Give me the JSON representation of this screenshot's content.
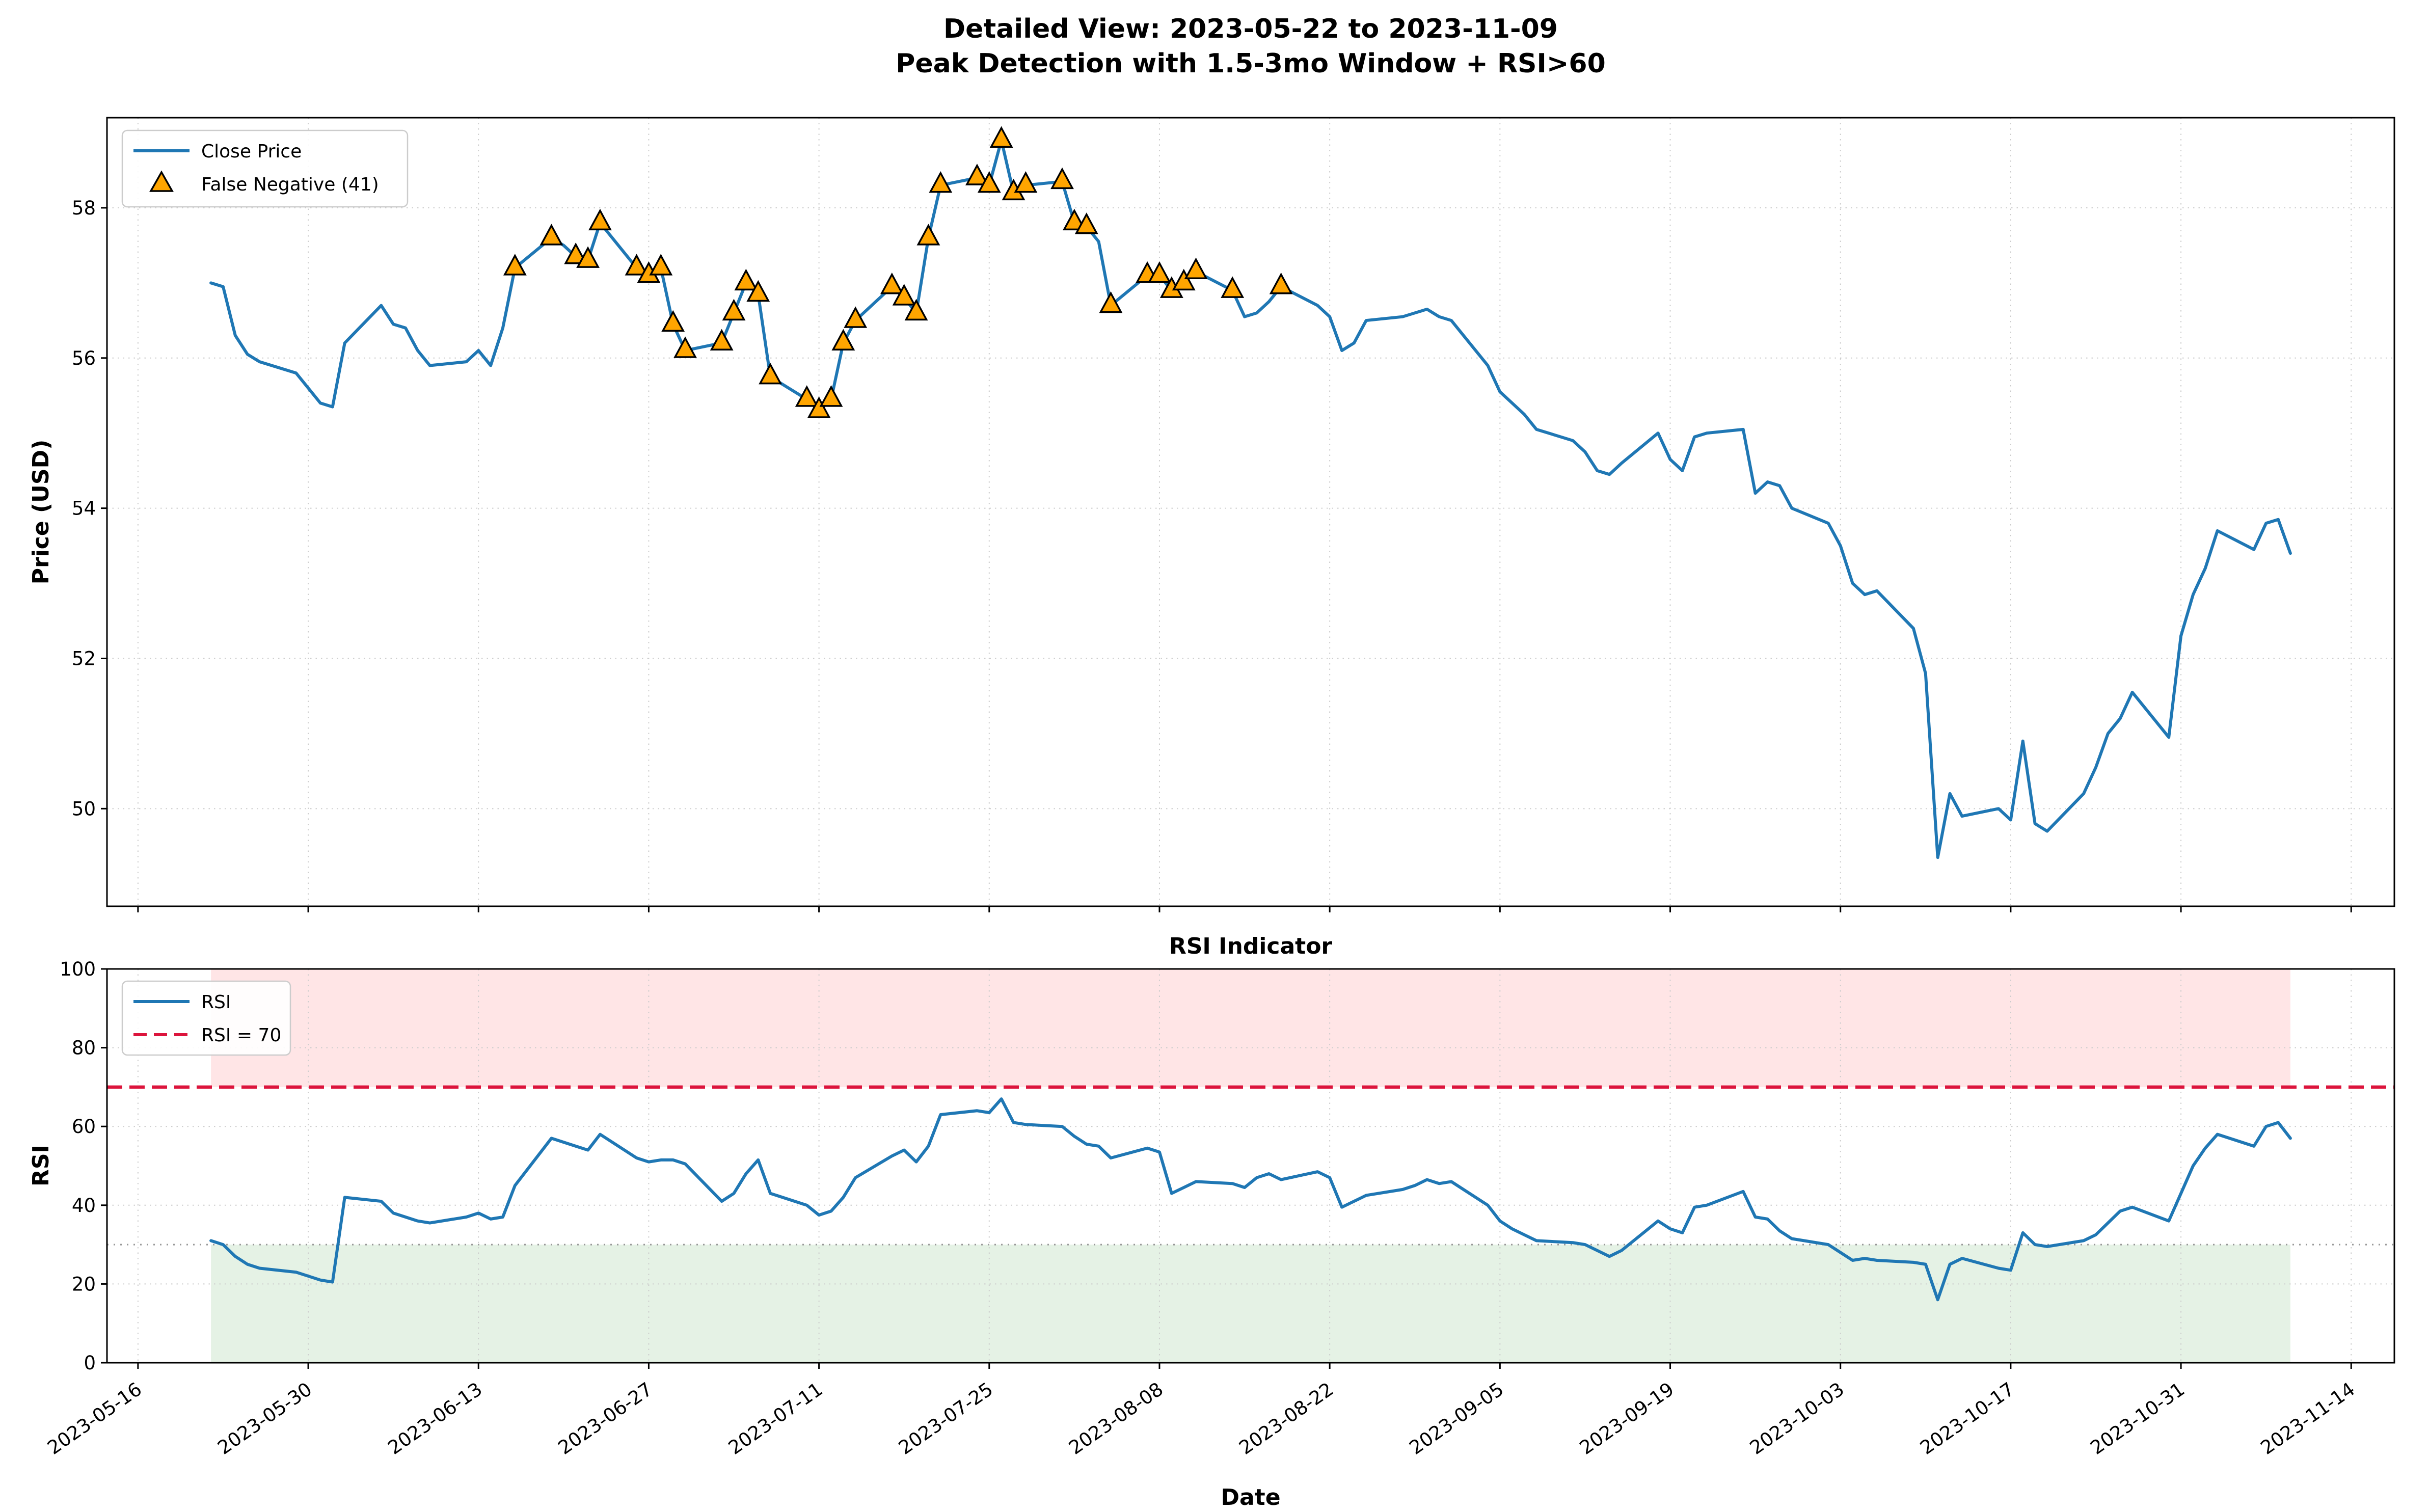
{
  "figure": {
    "title_line1": "Detailed View: 2023-05-22 to 2023-11-09",
    "title_line2": "Peak Detection with 1.5-3mo Window + RSI>60"
  },
  "price_panel": {
    "ylabel": "Price (USD)",
    "legend": {
      "close_price": "Close Price",
      "false_negative": "False Negative (41)"
    }
  },
  "rsi_panel": {
    "title": "RSI Indicator",
    "ylabel": "RSI",
    "xlabel": "Date",
    "legend": {
      "rsi": "RSI",
      "threshold": "RSI = 70"
    }
  },
  "colors": {
    "line": "#1f77b4",
    "marker_fill": "#ffa500",
    "marker_edge": "#000000",
    "threshold_line": "#dc143c",
    "overbought_band": "#ffe5e6",
    "oversold_band": "#e5f2e5",
    "oversold_line": "#999999",
    "grid": "#cccccc",
    "spine": "#000000"
  },
  "chart_data": {
    "type": "line",
    "title": "Detailed View: 2023-05-22 to 2023-11-09 / Peak Detection with 1.5-3mo Window + RSI>60",
    "legend_position": "upper left",
    "grid": true,
    "dates": [
      "2023-05-22",
      "2023-05-23",
      "2023-05-24",
      "2023-05-25",
      "2023-05-26",
      "2023-05-29",
      "2023-05-30",
      "2023-05-31",
      "2023-06-01",
      "2023-06-02",
      "2023-06-05",
      "2023-06-06",
      "2023-06-07",
      "2023-06-08",
      "2023-06-09",
      "2023-06-12",
      "2023-06-13",
      "2023-06-14",
      "2023-06-15",
      "2023-06-16",
      "2023-06-19",
      "2023-06-20",
      "2023-06-21",
      "2023-06-22",
      "2023-06-23",
      "2023-06-26",
      "2023-06-27",
      "2023-06-28",
      "2023-06-29",
      "2023-06-30",
      "2023-07-03",
      "2023-07-04",
      "2023-07-05",
      "2023-07-06",
      "2023-07-07",
      "2023-07-10",
      "2023-07-11",
      "2023-07-12",
      "2023-07-13",
      "2023-07-14",
      "2023-07-17",
      "2023-07-18",
      "2023-07-19",
      "2023-07-20",
      "2023-07-21",
      "2023-07-24",
      "2023-07-25",
      "2023-07-26",
      "2023-07-27",
      "2023-07-28",
      "2023-07-31",
      "2023-08-01",
      "2023-08-02",
      "2023-08-03",
      "2023-08-04",
      "2023-08-07",
      "2023-08-08",
      "2023-08-09",
      "2023-08-10",
      "2023-08-11",
      "2023-08-14",
      "2023-08-15",
      "2023-08-16",
      "2023-08-17",
      "2023-08-18",
      "2023-08-21",
      "2023-08-22",
      "2023-08-23",
      "2023-08-24",
      "2023-08-25",
      "2023-08-28",
      "2023-08-29",
      "2023-08-30",
      "2023-08-31",
      "2023-09-01",
      "2023-09-04",
      "2023-09-05",
      "2023-09-06",
      "2023-09-07",
      "2023-09-08",
      "2023-09-11",
      "2023-09-12",
      "2023-09-13",
      "2023-09-14",
      "2023-09-15",
      "2023-09-18",
      "2023-09-19",
      "2023-09-20",
      "2023-09-21",
      "2023-09-22",
      "2023-09-25",
      "2023-09-26",
      "2023-09-27",
      "2023-09-28",
      "2023-09-29",
      "2023-10-02",
      "2023-10-03",
      "2023-10-04",
      "2023-10-05",
      "2023-10-06",
      "2023-10-09",
      "2023-10-10",
      "2023-10-11",
      "2023-10-12",
      "2023-10-13",
      "2023-10-16",
      "2023-10-17",
      "2023-10-18",
      "2023-10-19",
      "2023-10-20",
      "2023-10-23",
      "2023-10-24",
      "2023-10-25",
      "2023-10-26",
      "2023-10-27",
      "2023-10-30",
      "2023-10-31",
      "2023-11-01",
      "2023-11-02",
      "2023-11-03",
      "2023-11-06",
      "2023-11-07",
      "2023-11-08",
      "2023-11-09"
    ],
    "price": {
      "name": "Close Price",
      "ylim": [
        48.7,
        59.2
      ],
      "yticks": [
        50,
        52,
        54,
        56,
        58
      ],
      "values": [
        57.0,
        56.95,
        56.3,
        56.05,
        55.95,
        55.8,
        55.6,
        55.4,
        55.35,
        56.2,
        56.7,
        56.45,
        56.4,
        56.1,
        55.9,
        55.95,
        56.1,
        55.9,
        56.4,
        57.2,
        57.6,
        57.5,
        57.35,
        57.3,
        57.8,
        57.2,
        57.1,
        57.2,
        56.45,
        56.1,
        56.2,
        56.6,
        57.0,
        56.85,
        55.75,
        55.45,
        55.3,
        55.45,
        56.2,
        56.5,
        56.95,
        56.8,
        56.6,
        57.6,
        58.3,
        58.4,
        58.3,
        58.9,
        58.2,
        58.3,
        58.35,
        57.8,
        57.75,
        57.55,
        56.7,
        57.1,
        57.1,
        56.9,
        57.0,
        57.15,
        56.9,
        56.55,
        56.6,
        56.75,
        56.95,
        56.7,
        56.55,
        56.1,
        56.2,
        56.5,
        56.55,
        56.6,
        56.65,
        56.55,
        56.5,
        55.9,
        55.55,
        55.4,
        55.25,
        55.05,
        54.9,
        54.75,
        54.5,
        54.45,
        54.6,
        55.0,
        54.65,
        54.5,
        54.95,
        55.0,
        55.05,
        54.2,
        54.35,
        54.3,
        54.0,
        53.8,
        53.5,
        53.0,
        52.85,
        52.9,
        52.4,
        51.8,
        49.35,
        50.2,
        49.9,
        50.0,
        49.85,
        50.9,
        49.8,
        49.7,
        50.2,
        50.55,
        51.0,
        51.2,
        51.55,
        50.95,
        52.3,
        52.85,
        53.2,
        53.7,
        53.45,
        53.8,
        53.85,
        53.4
      ]
    },
    "false_negatives": {
      "label": "False Negative (41)",
      "count": 41,
      "marker": "triangle-up",
      "dates": [
        "2023-06-16",
        "2023-06-19",
        "2023-06-21",
        "2023-06-22",
        "2023-06-23",
        "2023-06-26",
        "2023-06-27",
        "2023-06-28",
        "2023-06-29",
        "2023-06-30",
        "2023-07-03",
        "2023-07-04",
        "2023-07-05",
        "2023-07-06",
        "2023-07-07",
        "2023-07-10",
        "2023-07-11",
        "2023-07-12",
        "2023-07-13",
        "2023-07-14",
        "2023-07-17",
        "2023-07-18",
        "2023-07-19",
        "2023-07-20",
        "2023-07-21",
        "2023-07-24",
        "2023-07-25",
        "2023-07-26",
        "2023-07-27",
        "2023-07-28",
        "2023-07-31",
        "2023-08-01",
        "2023-08-02",
        "2023-08-04",
        "2023-08-07",
        "2023-08-08",
        "2023-08-09",
        "2023-08-10",
        "2023-08-11",
        "2023-08-14",
        "2023-08-18"
      ],
      "values": [
        57.2,
        57.6,
        57.35,
        57.3,
        57.8,
        57.2,
        57.1,
        57.2,
        56.45,
        56.1,
        56.2,
        56.6,
        57.0,
        56.85,
        55.75,
        55.45,
        55.3,
        55.45,
        56.2,
        56.5,
        56.95,
        56.8,
        56.6,
        57.6,
        58.3,
        58.4,
        58.3,
        58.9,
        58.2,
        58.3,
        58.35,
        57.8,
        57.75,
        56.7,
        57.1,
        57.1,
        56.9,
        57.0,
        57.15,
        56.9,
        56.95
      ]
    },
    "rsi": {
      "name": "RSI",
      "ylim": [
        0,
        100
      ],
      "yticks": [
        0,
        20,
        40,
        60,
        80,
        100
      ],
      "overbought": 70,
      "oversold": 30,
      "threshold_label": "RSI = 70",
      "values": [
        31,
        30,
        27,
        25,
        24,
        23,
        22,
        21,
        20.5,
        42,
        41,
        38,
        37,
        36,
        35.5,
        37,
        38,
        36.5,
        37,
        45,
        57,
        56,
        55,
        54,
        58,
        52,
        51,
        51.5,
        51.5,
        50.5,
        41,
        43,
        48,
        51.5,
        43,
        40,
        37.5,
        38.5,
        42,
        47,
        52.5,
        54,
        51,
        55,
        63,
        64,
        63.5,
        67,
        61,
        60.5,
        60,
        57.5,
        55.5,
        55,
        52,
        54.5,
        53.5,
        43,
        44.5,
        46,
        45.5,
        44.5,
        47,
        48,
        46.5,
        48.5,
        47,
        39.5,
        41,
        42.5,
        44,
        45,
        46.5,
        45.5,
        46,
        40,
        36,
        34,
        32.5,
        31,
        30.5,
        30,
        28.5,
        27,
        28.5,
        36,
        34,
        33,
        39.5,
        40,
        43.5,
        37,
        36.5,
        33.5,
        31.5,
        30,
        28,
        26,
        26.5,
        26,
        25.5,
        25,
        16,
        25,
        26.5,
        24,
        23.5,
        33,
        30,
        29.5,
        31,
        32.5,
        35.5,
        38.5,
        39.5,
        36,
        43,
        50,
        54.5,
        58,
        55,
        60,
        61,
        57
      ]
    },
    "xticks": [
      "2023-05-16",
      "2023-05-30",
      "2023-06-13",
      "2023-06-27",
      "2023-07-11",
      "2023-07-25",
      "2023-08-08",
      "2023-08-22",
      "2023-09-05",
      "2023-09-19",
      "2023-10-03",
      "2023-10-17",
      "2023-10-31",
      "2023-11-14"
    ]
  }
}
